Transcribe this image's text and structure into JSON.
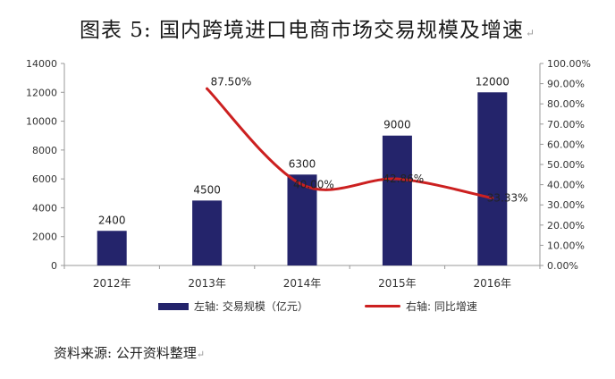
{
  "title": "图表 5:  国内跨境进口电商市场交易规模及增速",
  "source": "资料来源:  公开资料整理",
  "chart_data": {
    "type": "bar",
    "categories": [
      "2012年",
      "2013年",
      "2014年",
      "2015年",
      "2016年"
    ],
    "series": [
      {
        "name": "左轴:  交易规模（亿元）",
        "type": "bar",
        "axis": "left",
        "color": "#24246b",
        "values": [
          2400,
          4500,
          6300,
          9000,
          12000
        ],
        "value_labels": [
          "2400",
          "4500",
          "6300",
          "9000",
          "12000"
        ]
      },
      {
        "name": "右轴:  同比增速",
        "type": "line",
        "axis": "right",
        "color": "#cc2020",
        "values": [
          null,
          87.5,
          40.0,
          42.86,
          33.33
        ],
        "value_labels": [
          "",
          "87.50%",
          "40.00%",
          "42.86%",
          "33.33%"
        ]
      }
    ],
    "y_left": {
      "min": 0,
      "max": 14000,
      "ticks": [
        "0",
        "2000",
        "4000",
        "6000",
        "8000",
        "10000",
        "12000",
        "14000"
      ]
    },
    "y_right": {
      "min": 0,
      "max": 100,
      "ticks": [
        "0.00%",
        "10.00%",
        "20.00%",
        "30.00%",
        "40.00%",
        "50.00%",
        "60.00%",
        "70.00%",
        "80.00%",
        "90.00%",
        "100.00%"
      ]
    },
    "grid": false,
    "legend_position": "bottom"
  }
}
